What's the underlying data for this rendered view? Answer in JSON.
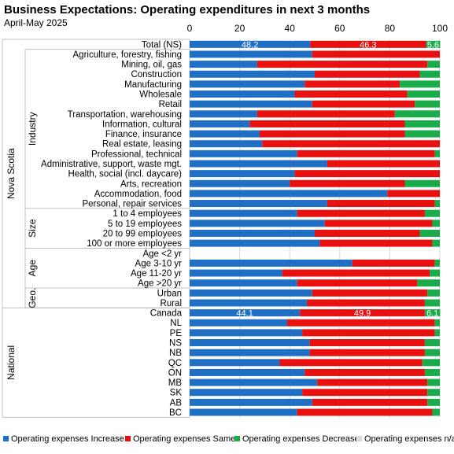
{
  "chart_data": {
    "type": "bar",
    "orientation": "horizontal",
    "stacked": true,
    "title": "Business Expectations: Operating expenditures in next 3 months",
    "subtitle": "April-May 2025",
    "xlim": [
      0,
      100
    ],
    "xticks": [
      "0",
      "20",
      "40",
      "60",
      "80",
      "100"
    ],
    "grid": true,
    "legend_position": "bottom",
    "series": [
      {
        "name": "Operating expenses Increase",
        "color": "#1f6fc5"
      },
      {
        "name": "Operating expenses Same",
        "color": "#e8110f"
      },
      {
        "name": "Operating expenses Decrease",
        "color": "#1aab4b"
      },
      {
        "name": "Operating expenses n/a",
        "color": "#d9d9d9"
      }
    ],
    "groups": [
      {
        "label": "Nova Scotia",
        "start": 0,
        "end": 26
      },
      {
        "label": "National",
        "start": 27,
        "end": 37
      }
    ],
    "subgroups": [
      {
        "label": "Industry",
        "start": 1,
        "end": 16
      },
      {
        "label": "Size",
        "start": 17,
        "end": 20
      },
      {
        "label": "Age",
        "start": 21,
        "end": 24
      },
      {
        "label": "Geo.",
        "start": 25,
        "end": 26
      }
    ],
    "rows": [
      {
        "label": "Total (NS)",
        "values": [
          48.2,
          46.3,
          5.6,
          0
        ],
        "show_labels": true
      },
      {
        "label": "Agriculture, forestry, fishing",
        "values": [
          49,
          51,
          0,
          0
        ]
      },
      {
        "label": "Mining, oil, gas",
        "values": [
          27,
          68,
          5,
          0
        ]
      },
      {
        "label": "Construction",
        "values": [
          50,
          42,
          8,
          0
        ]
      },
      {
        "label": "Manufacturing",
        "values": [
          46,
          38,
          16,
          0
        ]
      },
      {
        "label": "Wholesale",
        "values": [
          42,
          45,
          13,
          0
        ]
      },
      {
        "label": "Retail",
        "values": [
          49,
          41,
          10,
          0
        ]
      },
      {
        "label": "Transportation, warehousing",
        "values": [
          27,
          55,
          18,
          0
        ]
      },
      {
        "label": "Information, cultural",
        "values": [
          24,
          62,
          14,
          0
        ]
      },
      {
        "label": "Finance, insurance",
        "values": [
          28,
          58,
          14,
          0
        ]
      },
      {
        "label": "Real estate, leasing",
        "values": [
          29,
          71,
          0,
          0
        ]
      },
      {
        "label": "Professional, technical",
        "values": [
          43,
          55,
          2,
          0
        ]
      },
      {
        "label": "Administrative, support, waste mgt.",
        "values": [
          55,
          45,
          0,
          0
        ]
      },
      {
        "label": "Health, social (incl. daycare)",
        "values": [
          42,
          58,
          0,
          0
        ]
      },
      {
        "label": "Arts, recreation",
        "values": [
          40,
          46,
          14,
          0
        ]
      },
      {
        "label": "Accommodation, food",
        "values": [
          79,
          21,
          0,
          0
        ]
      },
      {
        "label": "Personal, repair services",
        "values": [
          55,
          43,
          2,
          0
        ]
      },
      {
        "label": "1 to 4 employees",
        "values": [
          43,
          51,
          6,
          0
        ]
      },
      {
        "label": "5 to 19 employees",
        "values": [
          54,
          43,
          3,
          0
        ]
      },
      {
        "label": "20 to 99 employees",
        "values": [
          50,
          42,
          8,
          0
        ]
      },
      {
        "label": "100 or more employees",
        "values": [
          52,
          45,
          3,
          0
        ]
      },
      {
        "label": "Age <2 yr",
        "values": [
          0,
          0,
          0,
          0
        ]
      },
      {
        "label": "Age 3-10 yr",
        "values": [
          65,
          33,
          2,
          0
        ]
      },
      {
        "label": "Age 11-20 yr",
        "values": [
          37,
          59,
          4,
          0
        ]
      },
      {
        "label": "Age >20 yr",
        "values": [
          43,
          48,
          9,
          0
        ]
      },
      {
        "label": "Urban",
        "values": [
          49,
          46,
          5,
          0
        ]
      },
      {
        "label": "Rural",
        "values": [
          47,
          47,
          6,
          0
        ]
      },
      {
        "label": "Canada",
        "values": [
          44.1,
          49.9,
          6.1,
          0
        ],
        "show_labels": true
      },
      {
        "label": "NL",
        "values": [
          39,
          59,
          2,
          0
        ]
      },
      {
        "label": "PE",
        "values": [
          45,
          53,
          2,
          0
        ]
      },
      {
        "label": "NS",
        "values": [
          48,
          46,
          6,
          0
        ]
      },
      {
        "label": "NB",
        "values": [
          48,
          46,
          6,
          0
        ]
      },
      {
        "label": "QC",
        "values": [
          36,
          57,
          7,
          0
        ]
      },
      {
        "label": "ON",
        "values": [
          46,
          48,
          6,
          0
        ]
      },
      {
        "label": "MB",
        "values": [
          51,
          44,
          5,
          0
        ]
      },
      {
        "label": "SK",
        "values": [
          45,
          50,
          5,
          0
        ]
      },
      {
        "label": "AB",
        "values": [
          49,
          46,
          5,
          0
        ]
      },
      {
        "label": "BC",
        "values": [
          43,
          54,
          3,
          0
        ]
      }
    ]
  }
}
